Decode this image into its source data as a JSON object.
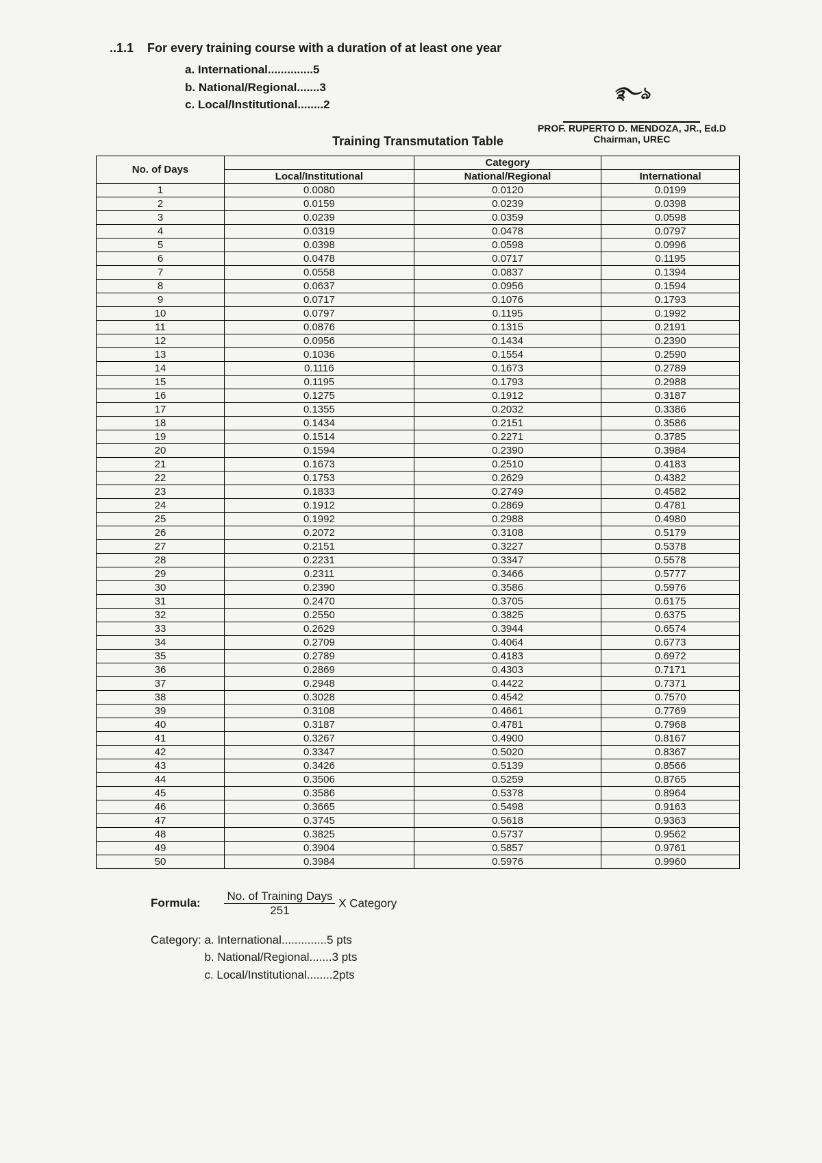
{
  "header": {
    "section_no": "..1.1",
    "section_text": "For every training course with a duration of at least one year",
    "items": [
      "a. International..............5",
      "b. National/Regional.......3",
      "c. Local/Institutional........2"
    ]
  },
  "signature": {
    "name": "PROF. RUPERTO D. MENDOZA, JR., Ed.D",
    "title": "Chairman, UREC"
  },
  "table_title": "Training Transmutation Table",
  "table": {
    "category_label": "Category",
    "columns": [
      "No. of Days",
      "Local/Institutional",
      "National/Regional",
      "International"
    ],
    "rows": [
      [
        "1",
        "0.0080",
        "0.0120",
        "0.0199"
      ],
      [
        "2",
        "0.0159",
        "0.0239",
        "0.0398"
      ],
      [
        "3",
        "0.0239",
        "0.0359",
        "0.0598"
      ],
      [
        "4",
        "0.0319",
        "0.0478",
        "0.0797"
      ],
      [
        "5",
        "0.0398",
        "0.0598",
        "0.0996"
      ],
      [
        "6",
        "0.0478",
        "0.0717",
        "0.1195"
      ],
      [
        "7",
        "0.0558",
        "0.0837",
        "0.1394"
      ],
      [
        "8",
        "0.0637",
        "0.0956",
        "0.1594"
      ],
      [
        "9",
        "0.0717",
        "0.1076",
        "0.1793"
      ],
      [
        "10",
        "0.0797",
        "0.1195",
        "0.1992"
      ],
      [
        "11",
        "0.0876",
        "0.1315",
        "0.2191"
      ],
      [
        "12",
        "0.0956",
        "0.1434",
        "0.2390"
      ],
      [
        "13",
        "0.1036",
        "0.1554",
        "0.2590"
      ],
      [
        "14",
        "0.1116",
        "0.1673",
        "0.2789"
      ],
      [
        "15",
        "0.1195",
        "0.1793",
        "0.2988"
      ],
      [
        "16",
        "0.1275",
        "0.1912",
        "0.3187"
      ],
      [
        "17",
        "0.1355",
        "0.2032",
        "0.3386"
      ],
      [
        "18",
        "0.1434",
        "0.2151",
        "0.3586"
      ],
      [
        "19",
        "0.1514",
        "0.2271",
        "0.3785"
      ],
      [
        "20",
        "0.1594",
        "0.2390",
        "0.3984"
      ],
      [
        "21",
        "0.1673",
        "0.2510",
        "0.4183"
      ],
      [
        "22",
        "0.1753",
        "0.2629",
        "0.4382"
      ],
      [
        "23",
        "0.1833",
        "0.2749",
        "0.4582"
      ],
      [
        "24",
        "0.1912",
        "0.2869",
        "0.4781"
      ],
      [
        "25",
        "0.1992",
        "0.2988",
        "0.4980"
      ],
      [
        "26",
        "0.2072",
        "0.3108",
        "0.5179"
      ],
      [
        "27",
        "0.2151",
        "0.3227",
        "0.5378"
      ],
      [
        "28",
        "0.2231",
        "0.3347",
        "0.5578"
      ],
      [
        "29",
        "0.2311",
        "0.3466",
        "0.5777"
      ],
      [
        "30",
        "0.2390",
        "0.3586",
        "0.5976"
      ],
      [
        "31",
        "0.2470",
        "0.3705",
        "0.6175"
      ],
      [
        "32",
        "0.2550",
        "0.3825",
        "0.6375"
      ],
      [
        "33",
        "0.2629",
        "0.3944",
        "0.6574"
      ],
      [
        "34",
        "0.2709",
        "0.4064",
        "0.6773"
      ],
      [
        "35",
        "0.2789",
        "0.4183",
        "0.6972"
      ],
      [
        "36",
        "0.2869",
        "0.4303",
        "0.7171"
      ],
      [
        "37",
        "0.2948",
        "0.4422",
        "0.7371"
      ],
      [
        "38",
        "0.3028",
        "0.4542",
        "0.7570"
      ],
      [
        "39",
        "0.3108",
        "0.4661",
        "0.7769"
      ],
      [
        "40",
        "0.3187",
        "0.4781",
        "0.7968"
      ],
      [
        "41",
        "0.3267",
        "0.4900",
        "0.8167"
      ],
      [
        "42",
        "0.3347",
        "0.5020",
        "0.8367"
      ],
      [
        "43",
        "0.3426",
        "0.5139",
        "0.8566"
      ],
      [
        "44",
        "0.3506",
        "0.5259",
        "0.8765"
      ],
      [
        "45",
        "0.3586",
        "0.5378",
        "0.8964"
      ],
      [
        "46",
        "0.3665",
        "0.5498",
        "0.9163"
      ],
      [
        "47",
        "0.3745",
        "0.5618",
        "0.9363"
      ],
      [
        "48",
        "0.3825",
        "0.5737",
        "0.9562"
      ],
      [
        "49",
        "0.3904",
        "0.5857",
        "0.9761"
      ],
      [
        "50",
        "0.3984",
        "0.5976",
        "0.9960"
      ]
    ]
  },
  "formula": {
    "label": "Formula:",
    "numerator": "No. of Training Days",
    "denominator": "251",
    "suffix": "X Category"
  },
  "category_footer": {
    "label": "Category:",
    "items": [
      "a. International..............5 pts",
      "b. National/Regional.......3 pts",
      "c. Local/Institutional........2pts"
    ]
  }
}
